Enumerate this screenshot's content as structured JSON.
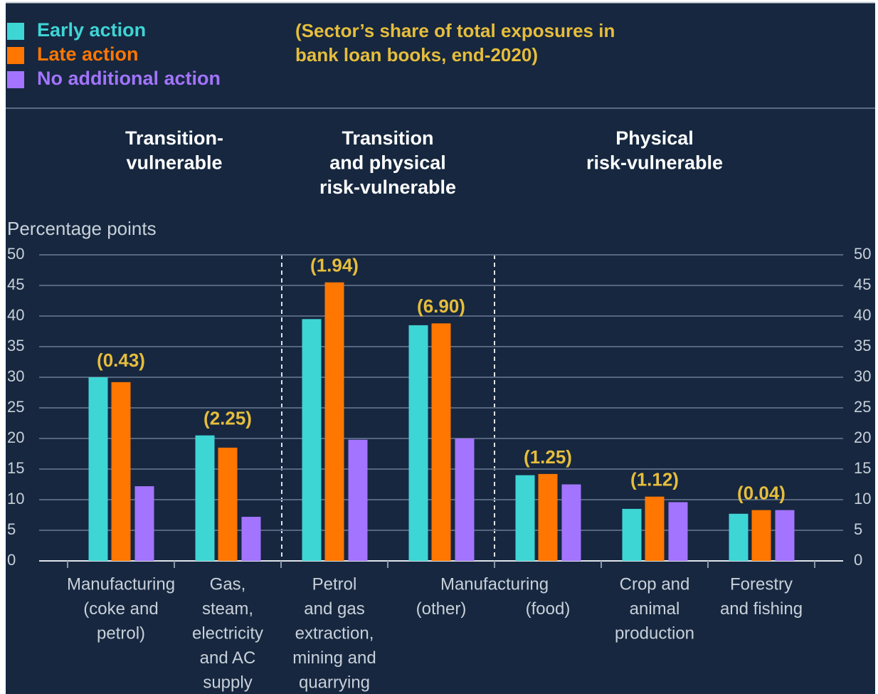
{
  "chart_data": {
    "type": "bar",
    "subtitle": [
      "(Sector’s share of total exposures in",
      "bank loan books, end-2020)"
    ],
    "y_axis_label": "Percentage points",
    "groups": [
      [
        "Transition-",
        "vulnerable"
      ],
      [
        "Transition",
        "and physical",
        "risk-vulnerable"
      ],
      [
        "Physical",
        "risk-vulnerable"
      ]
    ],
    "shared_category_label": "Manufacturing",
    "categories": [
      [
        "Manufacturing",
        "(coke and",
        "petrol)"
      ],
      [
        "Gas,",
        "steam,",
        "electricity",
        "and AC",
        "supply"
      ],
      [
        "Petrol",
        "and gas",
        "extraction,",
        "mining and",
        "quarrying"
      ],
      [
        "(other)"
      ],
      [
        "(food)"
      ],
      [
        "Crop and",
        "animal",
        "production"
      ],
      [
        "Forestry",
        "and fishing"
      ]
    ],
    "annotations": [
      "(0.43)",
      "(2.25)",
      "(1.94)",
      "(6.90)",
      "(1.25)",
      "(1.12)",
      "(0.04)"
    ],
    "series": [
      {
        "name": "Early action",
        "color": "#3ed5d5",
        "values": [
          30,
          20.5,
          39.5,
          38.5,
          14,
          8.5,
          7.7
        ]
      },
      {
        "name": "Late action",
        "color": "#ff7600",
        "values": [
          29.2,
          18.5,
          45.5,
          38.8,
          14.2,
          10.5,
          8.3
        ]
      },
      {
        "name": "No additional action",
        "color": "#a374ff",
        "values": [
          12.2,
          7.2,
          19.8,
          20,
          12.5,
          9.6,
          8.3
        ]
      }
    ],
    "ylim": [
      0,
      50
    ],
    "yticks": [
      0,
      5,
      10,
      15,
      20,
      25,
      30,
      35,
      40,
      45,
      50
    ],
    "grid": true
  }
}
